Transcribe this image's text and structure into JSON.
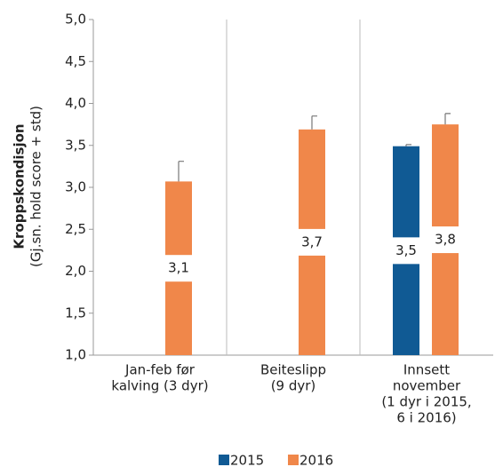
{
  "chart_data": {
    "type": "bar",
    "y_label": [
      "Kroppskondisjon",
      "(Gj.sn. hold score + std)"
    ],
    "categories": [
      [
        "Jan-feb før",
        "kalving (3 dyr)"
      ],
      [
        "Beiteslipp",
        "(9 dyr)"
      ],
      [
        "Innsett",
        "november",
        "(1 dyr i 2015,",
        "6 i 2016)"
      ]
    ],
    "series": [
      {
        "name": "2015",
        "color": "#105a94",
        "values": [
          null,
          null,
          3.49
        ],
        "value_labels": [
          null,
          null,
          "3,5"
        ],
        "errors": [
          null,
          null,
          0.02
        ]
      },
      {
        "name": "2016",
        "color": "#f0874a",
        "values": [
          3.07,
          3.69,
          3.75
        ],
        "value_labels": [
          "3,1",
          "3,7",
          "3,8"
        ],
        "errors": [
          0.24,
          0.16,
          0.13
        ]
      }
    ],
    "ylim": [
      1.0,
      5.0
    ],
    "yticks": [
      {
        "value": 1.0,
        "label": "1,0"
      },
      {
        "value": 1.5,
        "label": "1,5"
      },
      {
        "value": 2.0,
        "label": "2,0"
      },
      {
        "value": 2.5,
        "label": "2,5"
      },
      {
        "value": 3.0,
        "label": "3,0"
      },
      {
        "value": 3.5,
        "label": "3,5"
      },
      {
        "value": 4.0,
        "label": "4,0"
      },
      {
        "value": 4.5,
        "label": "4,5"
      },
      {
        "value": 5.0,
        "label": "5,0"
      }
    ],
    "legend": "bottom"
  }
}
